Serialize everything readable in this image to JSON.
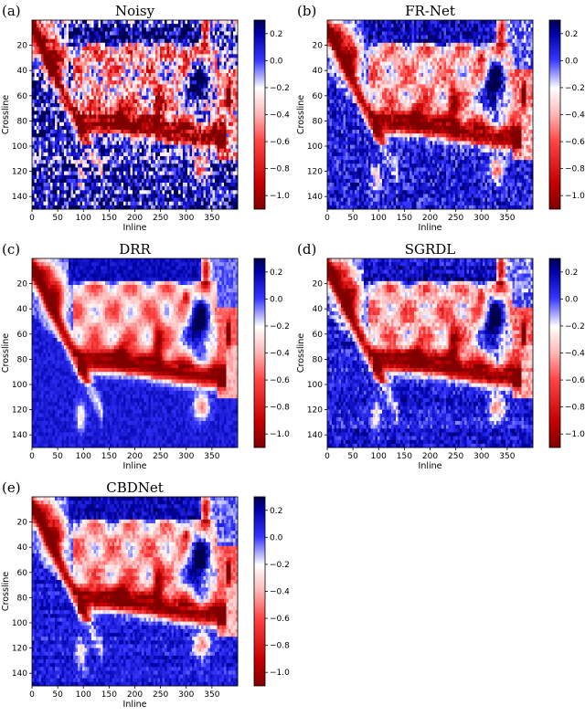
{
  "chart_data": [
    {
      "type": "heatmap",
      "panel": "(a)",
      "title": "Noisy",
      "xlabel": "Inline",
      "ylabel": "Crossline",
      "xlim": [
        0,
        400
      ],
      "ylim": [
        150,
        0
      ],
      "x_ticks": [
        0,
        50,
        100,
        150,
        200,
        250,
        300,
        350
      ],
      "y_ticks": [
        20,
        40,
        60,
        80,
        100,
        120,
        140
      ],
      "colorbar": {
        "range": [
          -1.1,
          0.3
        ],
        "ticks": [
          "0.2",
          "0.0",
          "−0.2",
          "−0.4",
          "−0.6",
          "−0.8",
          "−1.0"
        ],
        "colormap": "seismic_r"
      },
      "noise_level": 0.55,
      "stripes": true
    },
    {
      "type": "heatmap",
      "panel": "(b)",
      "title": "FR-Net",
      "xlabel": "Inline",
      "ylabel": "Crossline",
      "xlim": [
        0,
        400
      ],
      "ylim": [
        150,
        0
      ],
      "x_ticks": [
        0,
        50,
        100,
        150,
        200,
        250,
        300,
        350
      ],
      "y_ticks": [
        20,
        40,
        60,
        80,
        100,
        120,
        140
      ],
      "colorbar": {
        "range": [
          -1.1,
          0.3
        ],
        "ticks": [
          "0.2",
          "0.0",
          "−0.2",
          "−0.4",
          "−0.6",
          "−0.8",
          "−1.0"
        ],
        "colormap": "seismic_r"
      },
      "noise_level": 0.3,
      "stripes": false
    },
    {
      "type": "heatmap",
      "panel": "(c)",
      "title": "DRR",
      "xlabel": "Inline",
      "ylabel": "Crossline",
      "xlim": [
        0,
        400
      ],
      "ylim": [
        150,
        0
      ],
      "x_ticks": [
        0,
        50,
        100,
        150,
        200,
        250,
        300,
        350
      ],
      "y_ticks": [
        20,
        40,
        60,
        80,
        100,
        120,
        140
      ],
      "colorbar": {
        "range": [
          -1.1,
          0.3
        ],
        "ticks": [
          "0.2",
          "0.0",
          "−0.2",
          "−0.4",
          "−0.6",
          "−0.8",
          "−1.0"
        ],
        "colormap": "seismic_r"
      },
      "noise_level": 0.12,
      "stripes": false
    },
    {
      "type": "heatmap",
      "panel": "(d)",
      "title": "SGRDL",
      "xlabel": "Inline",
      "ylabel": "Crossline",
      "xlim": [
        0,
        400
      ],
      "ylim": [
        150,
        0
      ],
      "x_ticks": [
        0,
        50,
        100,
        150,
        200,
        250,
        300,
        350
      ],
      "y_ticks": [
        20,
        40,
        60,
        80,
        100,
        120,
        140
      ],
      "colorbar": {
        "range": [
          -1.1,
          0.3
        ],
        "ticks": [
          "0.2",
          "0.0",
          "−0.2",
          "−0.4",
          "−0.6",
          "−0.8",
          "−1.0"
        ],
        "colormap": "seismic_r"
      },
      "noise_level": 0.22,
      "stripes": true
    },
    {
      "type": "heatmap",
      "panel": "(e)",
      "title": "CBDNet",
      "xlabel": "Inline",
      "ylabel": "Crossline",
      "xlim": [
        0,
        400
      ],
      "ylim": [
        150,
        0
      ],
      "x_ticks": [
        0,
        50,
        100,
        150,
        200,
        250,
        300,
        350
      ],
      "y_ticks": [
        20,
        40,
        60,
        80,
        100,
        120,
        140
      ],
      "colorbar": {
        "range": [
          -1.1,
          0.3
        ],
        "ticks": [
          "0.2",
          "0.0",
          "−0.2",
          "−0.4",
          "−0.6",
          "−0.8",
          "−1.0"
        ],
        "colormap": "seismic_r"
      },
      "noise_level": 0.18,
      "stripes": true
    }
  ]
}
